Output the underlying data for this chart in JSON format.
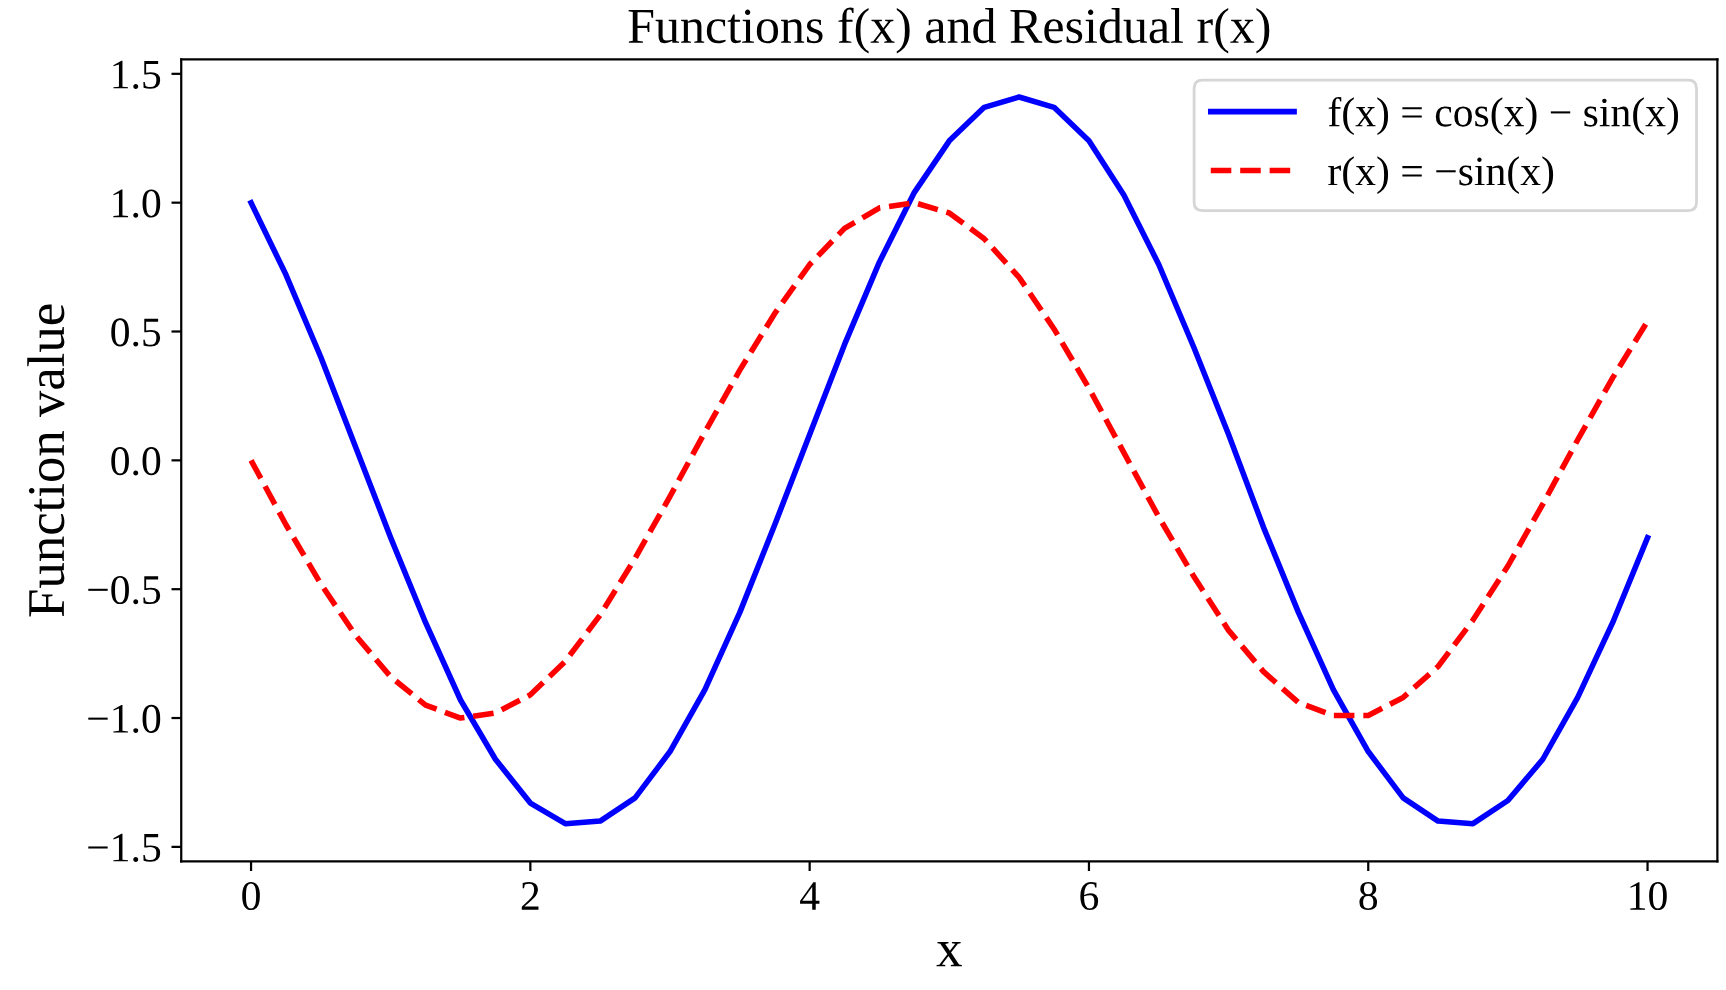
{
  "chart_data": {
    "type": "line",
    "title": "Functions f(x) and Residual r(x)",
    "xlabel": "x",
    "ylabel": "Function value",
    "x": [
      0,
      0.25,
      0.5,
      0.75,
      1,
      1.25,
      1.5,
      1.75,
      2,
      2.25,
      2.5,
      2.75,
      3,
      3.25,
      3.5,
      3.75,
      4,
      4.25,
      4.5,
      4.75,
      5,
      5.25,
      5.5,
      5.75,
      6,
      6.25,
      6.5,
      6.75,
      7,
      7.25,
      7.5,
      7.75,
      8,
      8.25,
      8.5,
      8.75,
      9,
      9.25,
      9.5,
      9.75,
      10
    ],
    "series": [
      {
        "name": "f(x) = cos(x) − sin(x)",
        "color": "#0000ff",
        "line_style": "solid",
        "values": [
          1.0,
          0.72,
          0.4,
          0.05,
          -0.3,
          -0.63,
          -0.93,
          -1.16,
          -1.33,
          -1.41,
          -1.4,
          -1.31,
          -1.13,
          -0.89,
          -0.59,
          -0.25,
          0.1,
          0.45,
          0.77,
          1.04,
          1.24,
          1.37,
          1.41,
          1.37,
          1.24,
          1.03,
          0.76,
          0.44,
          0.1,
          -0.26,
          -0.59,
          -0.89,
          -1.13,
          -1.31,
          -1.4,
          -1.41,
          -1.32,
          -1.16,
          -0.92,
          -0.63,
          -0.3
        ]
      },
      {
        "name": "r(x) = −sin(x)",
        "color": "#ff0000",
        "line_style": "dashed",
        "values": [
          0.0,
          -0.25,
          -0.48,
          -0.68,
          -0.84,
          -0.95,
          -1.0,
          -0.98,
          -0.91,
          -0.78,
          -0.6,
          -0.38,
          -0.14,
          0.11,
          0.35,
          0.57,
          0.76,
          0.9,
          0.98,
          1.0,
          0.96,
          0.86,
          0.71,
          0.51,
          0.28,
          0.03,
          -0.22,
          -0.45,
          -0.66,
          -0.82,
          -0.94,
          -0.99,
          -0.99,
          -0.92,
          -0.8,
          -0.62,
          -0.41,
          -0.17,
          0.08,
          0.32,
          0.54
        ]
      }
    ],
    "xlim": [
      -0.5,
      10.5
    ],
    "ylim": [
      -1.556,
      1.556
    ],
    "xticks": [
      0,
      2,
      4,
      6,
      8,
      10
    ],
    "yticks": [
      -1.5,
      {
        "value": -1,
        "label": "−1.0"
      },
      -0.5,
      {
        "value": 0,
        "label": "0.0"
      },
      0.5,
      {
        "value": 1,
        "label": "1.0"
      },
      1.5
    ],
    "grid": false,
    "legend": "top right",
    "marker": "none"
  }
}
